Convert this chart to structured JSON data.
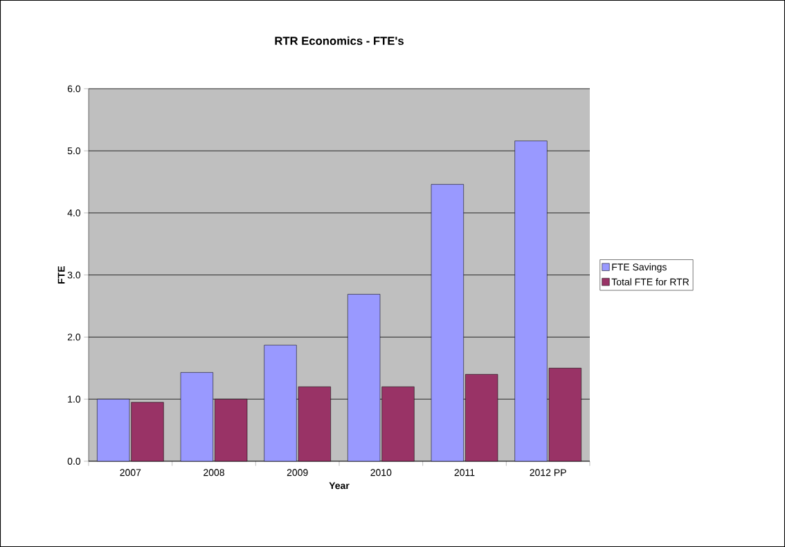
{
  "chart_data": {
    "type": "bar",
    "title": "RTR Economics - FTE's",
    "xlabel": "Year",
    "ylabel": "FTE",
    "categories": [
      "2007",
      "2008",
      "2009",
      "2010",
      "2011",
      "2012 PP"
    ],
    "series": [
      {
        "name": "FTE Savings",
        "color": "#9999ff",
        "values": [
          1.0,
          1.43,
          1.87,
          2.69,
          4.46,
          5.16
        ]
      },
      {
        "name": "Total FTE for RTR",
        "color": "#993366",
        "values": [
          0.95,
          1.0,
          1.2,
          1.2,
          1.4,
          1.5
        ]
      }
    ],
    "ylim": [
      0,
      6
    ],
    "yticks": [
      {
        "value": 0,
        "label": "0.0"
      },
      {
        "value": 1,
        "label": "1.0"
      },
      {
        "value": 2,
        "label": "2.0"
      },
      {
        "value": 3,
        "label": "3.0"
      },
      {
        "value": 4,
        "label": "4.0"
      },
      {
        "value": 5,
        "label": "5.0"
      },
      {
        "value": 6,
        "label": "6.0"
      }
    ],
    "grid": "y",
    "legend": "right"
  }
}
